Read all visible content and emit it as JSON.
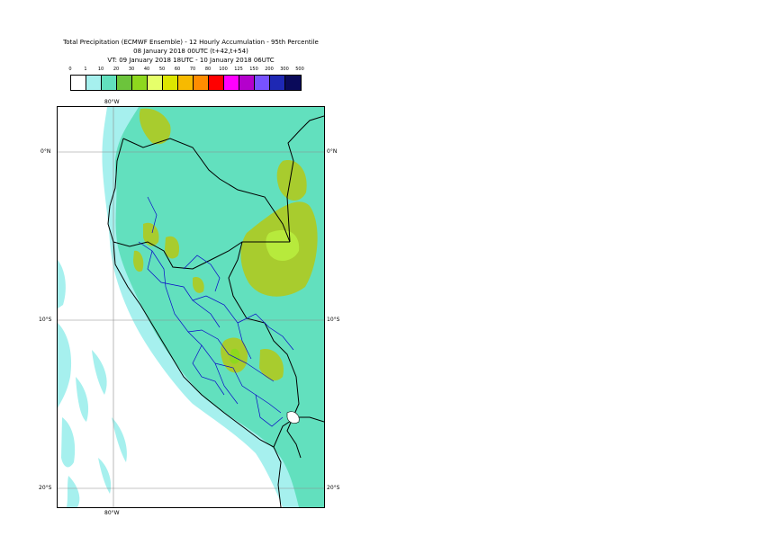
{
  "title": {
    "line1": "Total Precipitation (ECMWF Ensemble) - 12 Hourly Accumulation - 95th Percentile",
    "line2": "08 January 2018 00UTC (t+42,t+54)",
    "line3": "VT: 09 January 2018 18UTC - 10 January 2018 06UTC"
  },
  "legend": {
    "thresholds": [
      "0",
      "1",
      "10",
      "20",
      "30",
      "40",
      "50",
      "60",
      "70",
      "80",
      "100",
      "125",
      "150",
      "200",
      "300",
      "500"
    ],
    "colors": [
      "#ffffff",
      "#a6f0ee",
      "#62e0be",
      "#6cc43c",
      "#8ed81e",
      "#e6ff6a",
      "#dde600",
      "#f7ba00",
      "#ff8c00",
      "#ff0000",
      "#ff00ff",
      "#b400cc",
      "#7852ff",
      "#1e28b4",
      "#0a0a5a"
    ]
  },
  "map": {
    "colors": {
      "ocean_light": "#a6f0ee",
      "land_base": "#62e0be",
      "green": "#8ed81e",
      "olive": "#a8cc2e",
      "yellowgreen": "#b7ea3c",
      "country_border": "#000000",
      "region_border": "#0a0ac8",
      "grid": "#8c8c8c"
    },
    "labels": {
      "lon_top": "80°W",
      "lon_bottom": "80°W",
      "lat_0_left": "0°N",
      "lat_0_right": "0°N",
      "lat_10_left": "10°S",
      "lat_10_right": "10°S",
      "lat_20_left": "20°S",
      "lat_20_right": "20°S"
    }
  }
}
